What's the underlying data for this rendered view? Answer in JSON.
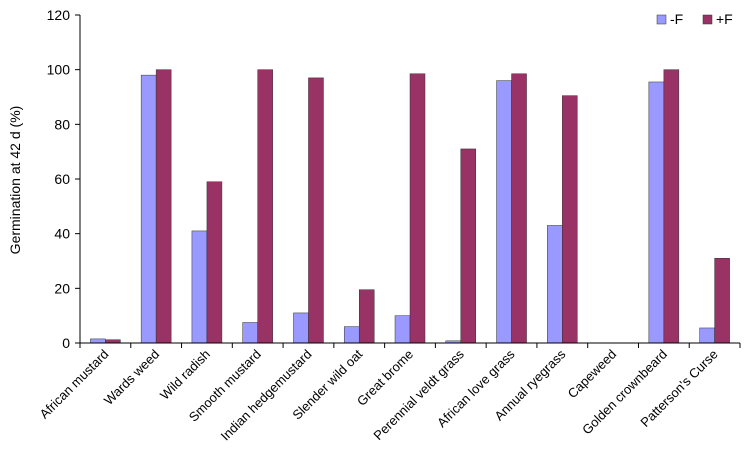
{
  "chart_data": {
    "type": "bar",
    "categories": [
      "African mustard",
      "Wards weed",
      "Wild radish",
      "Smooth mustard",
      "Indian hedgemustard",
      "Slender wild oat",
      "Great brome",
      "Perennial veldt grass",
      "African love grass",
      "Annual ryegrass",
      "Capeweed",
      "Golden crownbeard",
      "Patterson's Curse"
    ],
    "series": [
      {
        "name": "-F",
        "color": "#9999ff",
        "values": [
          1.5,
          98,
          41,
          7.5,
          11,
          6,
          10,
          0.8,
          96,
          43,
          0,
          95.5,
          5.5
        ]
      },
      {
        "name": "+F",
        "color": "#993366",
        "values": [
          1.2,
          100,
          59,
          100,
          97,
          19.5,
          98.5,
          71,
          98.5,
          90.5,
          0,
          100,
          31
        ]
      }
    ],
    "title": "",
    "xlabel": "",
    "ylabel": "Germination at 42 d (%)",
    "ylim": [
      0,
      120
    ],
    "yticks": [
      0,
      20,
      40,
      60,
      80,
      100,
      120
    ],
    "grid": false,
    "legend": "top-right"
  }
}
